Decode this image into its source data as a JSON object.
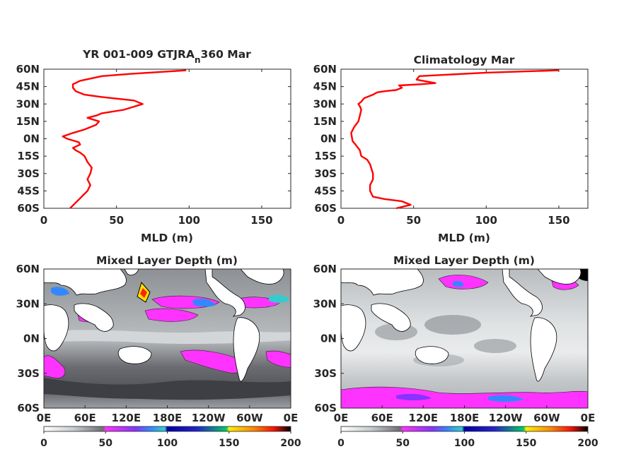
{
  "chart_data": [
    {
      "type": "line",
      "title": "YR 001-009 GTJRA",
      "title_subscript": "n",
      "title_suffix": "360 Mar",
      "xlabel": "MLD (m)",
      "ylabel": "",
      "xlim": [
        0,
        170
      ],
      "ylim": [
        -60,
        60
      ],
      "xticks": [
        "0",
        "50",
        "100",
        "150"
      ],
      "yticks": [
        "60N",
        "45N",
        "30N",
        "15N",
        "0N",
        "15S",
        "30S",
        "45S",
        "60S"
      ],
      "series": [
        {
          "color": "#ff0000",
          "x": [
            18,
            22,
            26,
            30,
            32,
            30,
            32,
            33,
            30,
            28,
            25,
            22,
            20,
            25,
            24,
            16,
            13,
            20,
            28,
            36,
            38,
            30,
            36,
            40,
            55,
            68,
            62,
            40,
            28,
            22,
            20,
            20,
            25,
            40,
            60,
            85,
            98
          ],
          "y": [
            -60,
            -55,
            -50,
            -45,
            -40,
            -35,
            -30,
            -25,
            -20,
            -15,
            -12,
            -10,
            -8,
            -5,
            -3,
            0,
            2,
            5,
            8,
            12,
            15,
            18,
            20,
            22,
            25,
            30,
            33,
            36,
            38,
            41,
            44,
            47,
            50,
            54,
            56,
            58,
            59
          ]
        }
      ]
    },
    {
      "type": "line",
      "title": "Climatology Mar",
      "xlabel": "MLD (m)",
      "ylabel": "",
      "xlim": [
        0,
        170
      ],
      "ylim": [
        -60,
        60
      ],
      "xticks": [
        "0",
        "50",
        "100",
        "150"
      ],
      "yticks": [
        "60N",
        "45N",
        "30N",
        "15N",
        "0N",
        "15S",
        "30S",
        "45S",
        "60S"
      ],
      "series": [
        {
          "color": "#ff0000",
          "x": [
            38,
            48,
            42,
            30,
            22,
            20,
            20,
            22,
            22,
            20,
            18,
            14,
            13,
            10,
            8,
            7,
            9,
            12,
            13,
            14,
            13,
            12,
            14,
            16,
            22,
            25,
            30,
            38,
            42,
            40,
            55,
            65,
            52,
            54,
            100,
            150
          ],
          "y": [
            -60,
            -57,
            -54,
            -52,
            -50,
            -45,
            -40,
            -35,
            -30,
            -22,
            -18,
            -15,
            -10,
            -5,
            -2,
            5,
            10,
            15,
            20,
            25,
            28,
            30,
            32,
            35,
            38,
            40,
            41,
            42,
            44,
            46,
            47,
            48,
            51,
            54,
            57,
            59
          ]
        }
      ]
    },
    {
      "type": "heatmap",
      "title": "Mixed Layer Depth (m)",
      "xticks": [
        "0E",
        "60E",
        "120E",
        "180E",
        "120W",
        "60W",
        "0E"
      ],
      "yticks": [
        "60N",
        "30N",
        "0N",
        "30S",
        "60S"
      ],
      "colorbar": {
        "min": 0,
        "max": 200,
        "ticks": [
          "0",
          "50",
          "100",
          "150",
          "200"
        ]
      }
    },
    {
      "type": "heatmap",
      "title": "Mixed Layer Depth (m)",
      "xticks": [
        "0E",
        "60E",
        "120E",
        "180E",
        "120W",
        "60W",
        "0E"
      ],
      "yticks": [
        "60N",
        "30N",
        "0N",
        "30S",
        "60S"
      ],
      "colorbar": {
        "min": 0,
        "max": 200,
        "ticks": [
          "0",
          "50",
          "100",
          "150",
          "200"
        ]
      }
    }
  ]
}
